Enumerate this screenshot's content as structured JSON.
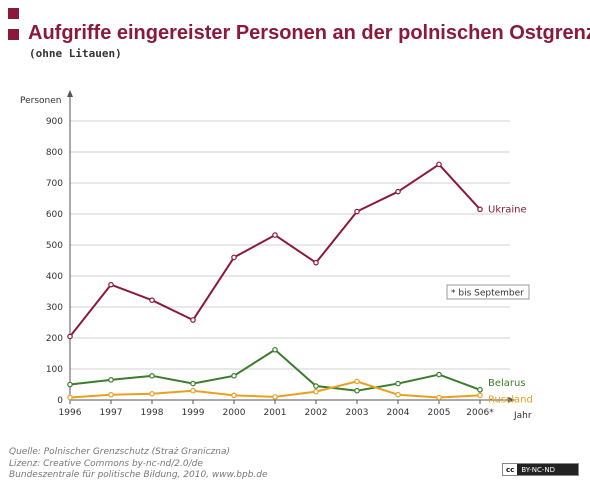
{
  "header": {
    "title": "Aufgriffe eingereister Personen an der polnischen Ostgrenze",
    "subtitle": "(ohne Litauen)"
  },
  "footer": {
    "lines": [
      "Quelle:  Polnischer Grenzschutz (Straż Graniczna)",
      "Lizenz: Creative Commons by-nc-nd/2.0/de",
      "Bundeszentrale für politische Bildung, 2010, www.bpb.de"
    ],
    "license_badge": "BY-NC-ND",
    "license_logo": "cc"
  },
  "chart_data": {
    "type": "line",
    "title": "Aufgriffe eingereister Personen an der polnischen Ostgrenze",
    "subtitle": "(ohne Litauen)",
    "xlabel": "Jahr",
    "ylabel": "Personen",
    "x": [
      "1996",
      "1997",
      "1998",
      "1999",
      "2000",
      "2001",
      "2002",
      "2003",
      "2004",
      "2005",
      "2006*"
    ],
    "ylim": [
      0,
      900
    ],
    "yticks": [
      0,
      100,
      200,
      300,
      400,
      500,
      600,
      700,
      800,
      900
    ],
    "grid": true,
    "annotation": "* bis September",
    "series": [
      {
        "name": "Ukraine",
        "color": "#8b1a3a",
        "values": [
          205,
          372,
          322,
          258,
          460,
          532,
          443,
          608,
          672,
          760,
          615
        ]
      },
      {
        "name": "Belarus",
        "color": "#3a7d2a",
        "values": [
          50,
          65,
          78,
          53,
          78,
          162,
          45,
          30,
          53,
          82,
          33
        ]
      },
      {
        "name": "Russland",
        "color": "#e8a020",
        "values": [
          8,
          17,
          20,
          30,
          15,
          10,
          27,
          60,
          17,
          8,
          15
        ]
      }
    ]
  }
}
